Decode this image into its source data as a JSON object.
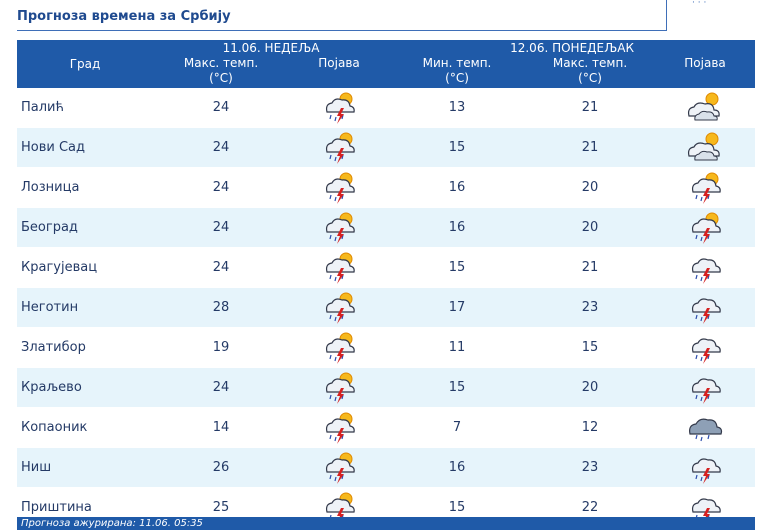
{
  "page": {
    "title": "Прогноза времена за Србију",
    "corner_logo": "· · ·"
  },
  "header": {
    "city_label": "Град",
    "day1": {
      "date_label": "11.06. НЕДЕЉА",
      "max_label_line1": "Макс. темп.",
      "max_label_line2": "(°C)",
      "phenomenon_label": "Појава"
    },
    "day2": {
      "date_label": "12.06. ПОНЕДЕЉАК",
      "min_label_line1": "Мин. темп.",
      "min_label_line2": "(°C)",
      "max_label_line1": "Макс. темп.",
      "max_label_line2": "(°C)",
      "phenomenon_label": "Појава"
    }
  },
  "rows": [
    {
      "city": "Палић",
      "d1_max": "24",
      "d1_icon": "sun-cloud-rain-lightning-icon",
      "d2_min": "13",
      "d2_max": "21",
      "d2_icon": "partly-cloudy-icon"
    },
    {
      "city": "Нови Сад",
      "d1_max": "24",
      "d1_icon": "sun-cloud-rain-lightning-icon",
      "d2_min": "15",
      "d2_max": "21",
      "d2_icon": "partly-cloudy-icon"
    },
    {
      "city": "Лозница",
      "d1_max": "24",
      "d1_icon": "sun-cloud-rain-lightning-icon",
      "d2_min": "16",
      "d2_max": "20",
      "d2_icon": "sun-cloud-rain-lightning-icon"
    },
    {
      "city": "Београд",
      "d1_max": "24",
      "d1_icon": "sun-cloud-rain-lightning-icon",
      "d2_min": "16",
      "d2_max": "20",
      "d2_icon": "sun-cloud-rain-lightning-icon"
    },
    {
      "city": "Крагујевац",
      "d1_max": "24",
      "d1_icon": "sun-cloud-rain-lightning-icon",
      "d2_min": "15",
      "d2_max": "21",
      "d2_icon": "cloud-rain-lightning-icon"
    },
    {
      "city": "Неготин",
      "d1_max": "28",
      "d1_icon": "sun-cloud-rain-lightning-icon",
      "d2_min": "17",
      "d2_max": "23",
      "d2_icon": "cloud-rain-lightning-icon"
    },
    {
      "city": "Златибор",
      "d1_max": "19",
      "d1_icon": "sun-cloud-rain-lightning-icon",
      "d2_min": "11",
      "d2_max": "15",
      "d2_icon": "cloud-rain-lightning-icon"
    },
    {
      "city": "Краљево",
      "d1_max": "24",
      "d1_icon": "sun-cloud-rain-lightning-icon",
      "d2_min": "15",
      "d2_max": "20",
      "d2_icon": "cloud-rain-lightning-icon"
    },
    {
      "city": "Копаоник",
      "d1_max": "14",
      "d1_icon": "sun-cloud-rain-lightning-icon",
      "d2_min": "7",
      "d2_max": "12",
      "d2_icon": "cloud-rain-icon"
    },
    {
      "city": "Ниш",
      "d1_max": "26",
      "d1_icon": "sun-cloud-rain-lightning-icon",
      "d2_min": "16",
      "d2_max": "23",
      "d2_icon": "cloud-rain-lightning-icon"
    },
    {
      "city": "Приштина",
      "d1_max": "25",
      "d1_icon": "sun-cloud-rain-lightning-icon",
      "d2_min": "15",
      "d2_max": "22",
      "d2_icon": "cloud-rain-lightning-icon"
    }
  ],
  "footer": {
    "updated_text": "Прогноза ажурирана:  11.06. 05:35"
  },
  "colors": {
    "header_bg": "#1f5aa8",
    "row_alt_bg": "#e6f4fb",
    "title_color": "#1f4a8f"
  }
}
